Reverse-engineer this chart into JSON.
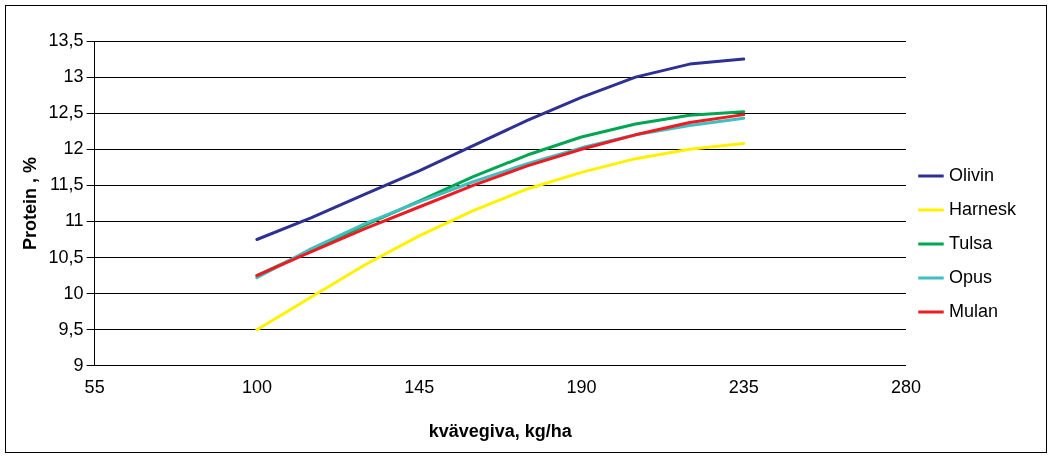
{
  "chart_data": {
    "type": "line",
    "xlabel": "kvävegiva, kg/ha",
    "ylabel": "Protein , %",
    "x": [
      100,
      115,
      130,
      145,
      160,
      175,
      190,
      205,
      220,
      235
    ],
    "xlim": [
      55,
      280
    ],
    "xticks": [
      55,
      100,
      145,
      190,
      235,
      280
    ],
    "ylim": [
      9,
      13.5
    ],
    "yticks": [
      {
        "value": 9,
        "label": "9"
      },
      {
        "value": 9.5,
        "label": "9,5"
      },
      {
        "value": 10,
        "label": "10"
      },
      {
        "value": 10.5,
        "label": "10,5"
      },
      {
        "value": 11,
        "label": "11"
      },
      {
        "value": 11.5,
        "label": "11,5"
      },
      {
        "value": 12,
        "label": "12"
      },
      {
        "value": 12.5,
        "label": "12,5"
      },
      {
        "value": 13,
        "label": "13"
      },
      {
        "value": 13.5,
        "label": "13,5"
      }
    ],
    "grid": "y",
    "legend": "right",
    "marker": "none",
    "line_style": "solid",
    "series": [
      {
        "name": "Olivin",
        "color": "#2e3192",
        "values": [
          10.75,
          11.05,
          11.38,
          11.7,
          12.05,
          12.4,
          12.72,
          13.0,
          13.18,
          13.25
        ]
      },
      {
        "name": "Harnesk",
        "color": "#fff200",
        "values": [
          9.5,
          9.95,
          10.4,
          10.8,
          11.15,
          11.45,
          11.68,
          11.87,
          12.0,
          12.08
        ]
      },
      {
        "name": "Tulsa",
        "color": "#00a651",
        "values": [
          10.25,
          10.6,
          10.95,
          11.28,
          11.62,
          11.92,
          12.17,
          12.35,
          12.47,
          12.52
        ]
      },
      {
        "name": "Opus",
        "color": "#3fbfbf",
        "values": [
          10.22,
          10.62,
          10.97,
          11.27,
          11.55,
          11.8,
          12.02,
          12.2,
          12.33,
          12.43
        ]
      },
      {
        "name": "Mulan",
        "color": "#ed1c24",
        "values": [
          10.25,
          10.58,
          10.9,
          11.2,
          11.5,
          11.77,
          12.0,
          12.2,
          12.37,
          12.48
        ]
      }
    ]
  }
}
